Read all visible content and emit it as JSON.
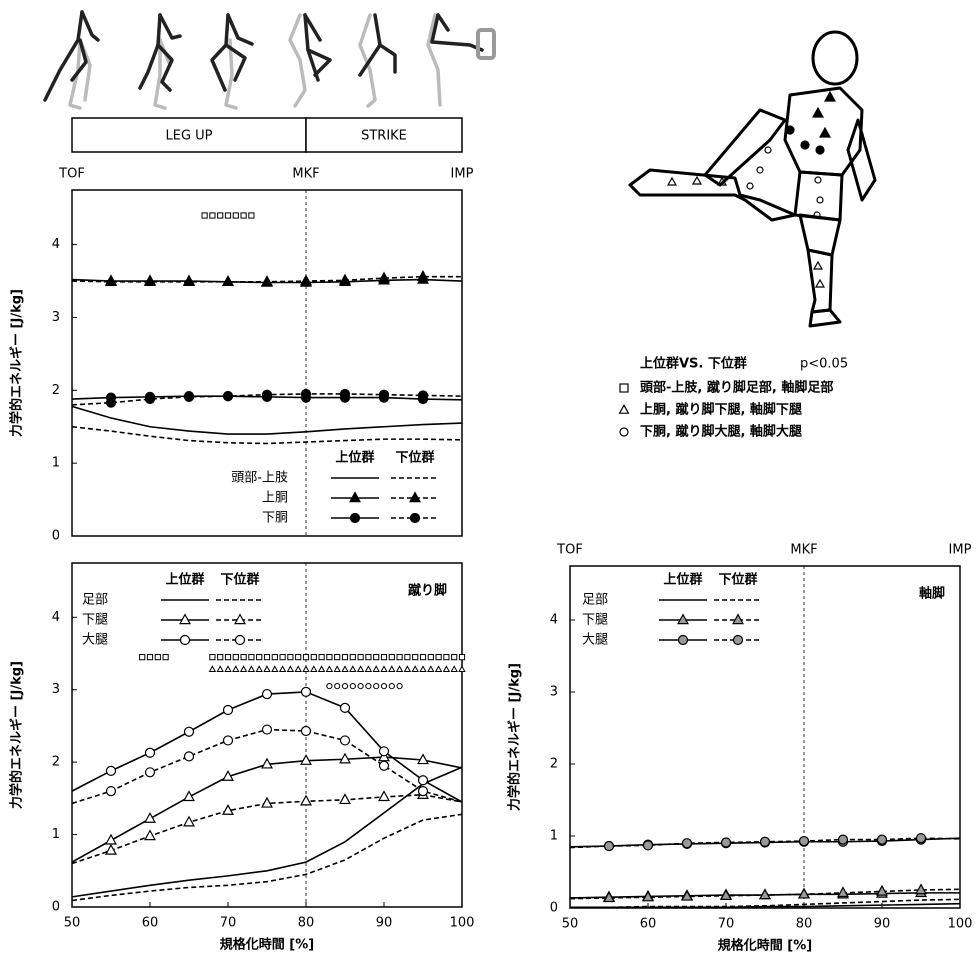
{
  "chart_data": [
    {
      "type": "line",
      "ylabel": "力学的エネルギー [J/kg]",
      "xlim": [
        50,
        100
      ],
      "ylim": [
        0,
        4.75
      ],
      "yticks": [
        0,
        1,
        2,
        3,
        4
      ],
      "events": [
        {
          "label": "TOF",
          "x": 50
        },
        {
          "label": "MKF",
          "x": 80
        },
        {
          "label": "IMP",
          "x": 100
        }
      ],
      "phases": [
        {
          "label": "LEG UP",
          "from": 50,
          "to": 80
        },
        {
          "label": "STRIKE",
          "from": 80,
          "to": 100
        }
      ],
      "groups": [
        {
          "name": "上位群",
          "dash": "solid"
        },
        {
          "name": "下位群",
          "dash": "dashed"
        }
      ],
      "x": [
        50,
        55,
        60,
        65,
        70,
        75,
        80,
        85,
        90,
        95,
        100
      ],
      "series": [
        {
          "name": "頭部-上肢",
          "marker": "none",
          "marker_fill": "#000",
          "values": [
            [
              1.78,
              1.62,
              1.5,
              1.44,
              1.4,
              1.4,
              1.43,
              1.47,
              1.5,
              1.53,
              1.55
            ],
            [
              1.5,
              1.44,
              1.37,
              1.31,
              1.28,
              1.27,
              1.29,
              1.31,
              1.33,
              1.33,
              1.32
            ]
          ]
        },
        {
          "name": "上胴",
          "marker": "triangle",
          "marker_fill": "#000",
          "values": [
            [
              3.52,
              3.5,
              3.5,
              3.5,
              3.49,
              3.48,
              3.48,
              3.49,
              3.51,
              3.52,
              3.5
            ],
            [
              3.5,
              3.49,
              3.49,
              3.49,
              3.49,
              3.49,
              3.5,
              3.51,
              3.54,
              3.56,
              3.56
            ]
          ]
        },
        {
          "name": "下胴",
          "marker": "circle",
          "marker_fill": "#000",
          "values": [
            [
              1.88,
              1.9,
              1.91,
              1.92,
              1.92,
              1.91,
              1.9,
              1.9,
              1.9,
              1.88,
              1.87
            ],
            [
              1.8,
              1.83,
              1.88,
              1.91,
              1.92,
              1.94,
              1.95,
              1.95,
              1.94,
              1.93,
              1.92
            ]
          ]
        }
      ],
      "significance": [
        {
          "marker": "square",
          "y": 4.4,
          "ranges": [
            [
              67,
              73
            ]
          ]
        }
      ]
    },
    {
      "type": "line",
      "title": "蹴り脚",
      "xlabel": "規格化時間 [%]",
      "ylabel": "力学的エネルギー [J/kg]",
      "xlim": [
        50,
        100
      ],
      "ylim": [
        0,
        4.75
      ],
      "xticks": [
        50,
        60,
        70,
        80,
        90,
        100
      ],
      "yticks": [
        0,
        1,
        2,
        3,
        4
      ],
      "vline": 80,
      "groups": [
        {
          "name": "上位群",
          "dash": "solid"
        },
        {
          "name": "下位群",
          "dash": "dashed"
        }
      ],
      "x": [
        50,
        55,
        60,
        65,
        70,
        75,
        80,
        85,
        90,
        95,
        100
      ],
      "series": [
        {
          "name": "足部",
          "marker": "none",
          "marker_fill": "#fff",
          "values": [
            [
              0.14,
              0.22,
              0.3,
              0.37,
              0.43,
              0.5,
              0.62,
              0.9,
              1.3,
              1.7,
              1.93
            ],
            [
              0.09,
              0.16,
              0.22,
              0.27,
              0.3,
              0.35,
              0.45,
              0.65,
              0.95,
              1.2,
              1.28
            ]
          ]
        },
        {
          "name": "下腿",
          "marker": "triangle",
          "marker_fill": "#fff",
          "values": [
            [
              0.62,
              0.92,
              1.22,
              1.52,
              1.8,
              1.97,
              2.02,
              2.04,
              2.07,
              2.03,
              1.92
            ],
            [
              0.6,
              0.78,
              0.98,
              1.17,
              1.33,
              1.43,
              1.46,
              1.48,
              1.52,
              1.55,
              1.45
            ]
          ]
        },
        {
          "name": "大腿",
          "marker": "circle",
          "marker_fill": "#fff",
          "values": [
            [
              1.6,
              1.88,
              2.13,
              2.42,
              2.72,
              2.94,
              2.97,
              2.75,
              2.15,
              1.75,
              1.45
            ],
            [
              1.43,
              1.6,
              1.86,
              2.08,
              2.3,
              2.45,
              2.43,
              2.3,
              1.95,
              1.6,
              1.45
            ]
          ]
        }
      ],
      "significance": [
        {
          "marker": "square",
          "y": 3.45,
          "ranges": [
            [
              59,
              62
            ],
            [
              68,
              100
            ]
          ]
        },
        {
          "marker": "triangle",
          "y": 3.28,
          "ranges": [
            [
              68,
              100
            ]
          ]
        },
        {
          "marker": "circle",
          "y": 3.05,
          "ranges": [
            [
              83,
              92
            ]
          ]
        }
      ]
    },
    {
      "type": "line",
      "title": "軸脚",
      "xlabel": "規格化時間 [%]",
      "ylabel": "力学的エネルギー [J/kg]",
      "xlim": [
        50,
        100
      ],
      "ylim": [
        0,
        4.75
      ],
      "xticks": [
        50,
        60,
        70,
        80,
        90,
        100
      ],
      "yticks": [
        0,
        1,
        2,
        3,
        4
      ],
      "events": [
        {
          "label": "TOF",
          "x": 50
        },
        {
          "label": "MKF",
          "x": 80
        },
        {
          "label": "IMP",
          "x": 100
        }
      ],
      "groups": [
        {
          "name": "上位群",
          "dash": "solid"
        },
        {
          "name": "下位群",
          "dash": "dashed"
        }
      ],
      "x": [
        50,
        55,
        60,
        65,
        70,
        75,
        80,
        85,
        90,
        95,
        100
      ],
      "series": [
        {
          "name": "足部",
          "marker": "none",
          "marker_fill": "#999",
          "values": [
            [
              0.01,
              0.01,
              0.01,
              0.01,
              0.01,
              0.02,
              0.02,
              0.03,
              0.04,
              0.05,
              0.06
            ],
            [
              0.01,
              0.01,
              0.02,
              0.02,
              0.02,
              0.03,
              0.05,
              0.07,
              0.09,
              0.11,
              0.12
            ]
          ]
        },
        {
          "name": "下腿",
          "marker": "triangle",
          "marker_fill": "#999",
          "values": [
            [
              0.14,
              0.15,
              0.16,
              0.17,
              0.18,
              0.18,
              0.19,
              0.19,
              0.2,
              0.21,
              0.21
            ],
            [
              0.13,
              0.14,
              0.15,
              0.16,
              0.17,
              0.18,
              0.19,
              0.21,
              0.23,
              0.25,
              0.26
            ]
          ]
        },
        {
          "name": "大腿",
          "marker": "circle",
          "marker_fill": "#999",
          "values": [
            [
              0.85,
              0.86,
              0.88,
              0.89,
              0.9,
              0.91,
              0.92,
              0.92,
              0.93,
              0.95,
              0.97
            ],
            [
              0.84,
              0.86,
              0.87,
              0.9,
              0.91,
              0.92,
              0.93,
              0.95,
              0.95,
              0.97,
              0.96
            ]
          ]
        }
      ]
    }
  ],
  "significance_legend": {
    "title": "上位群VS. 下位群",
    "p": "p<0.05",
    "rows": [
      {
        "marker": "square",
        "label": "頭部-上肢, 蹴り脚足部, 軸脚足部"
      },
      {
        "marker": "triangle",
        "label": "上胴, 蹴り脚下腿, 軸脚下腿"
      },
      {
        "marker": "circle",
        "label": "下胴, 蹴り脚大腿, 軸脚大腿"
      }
    ]
  }
}
